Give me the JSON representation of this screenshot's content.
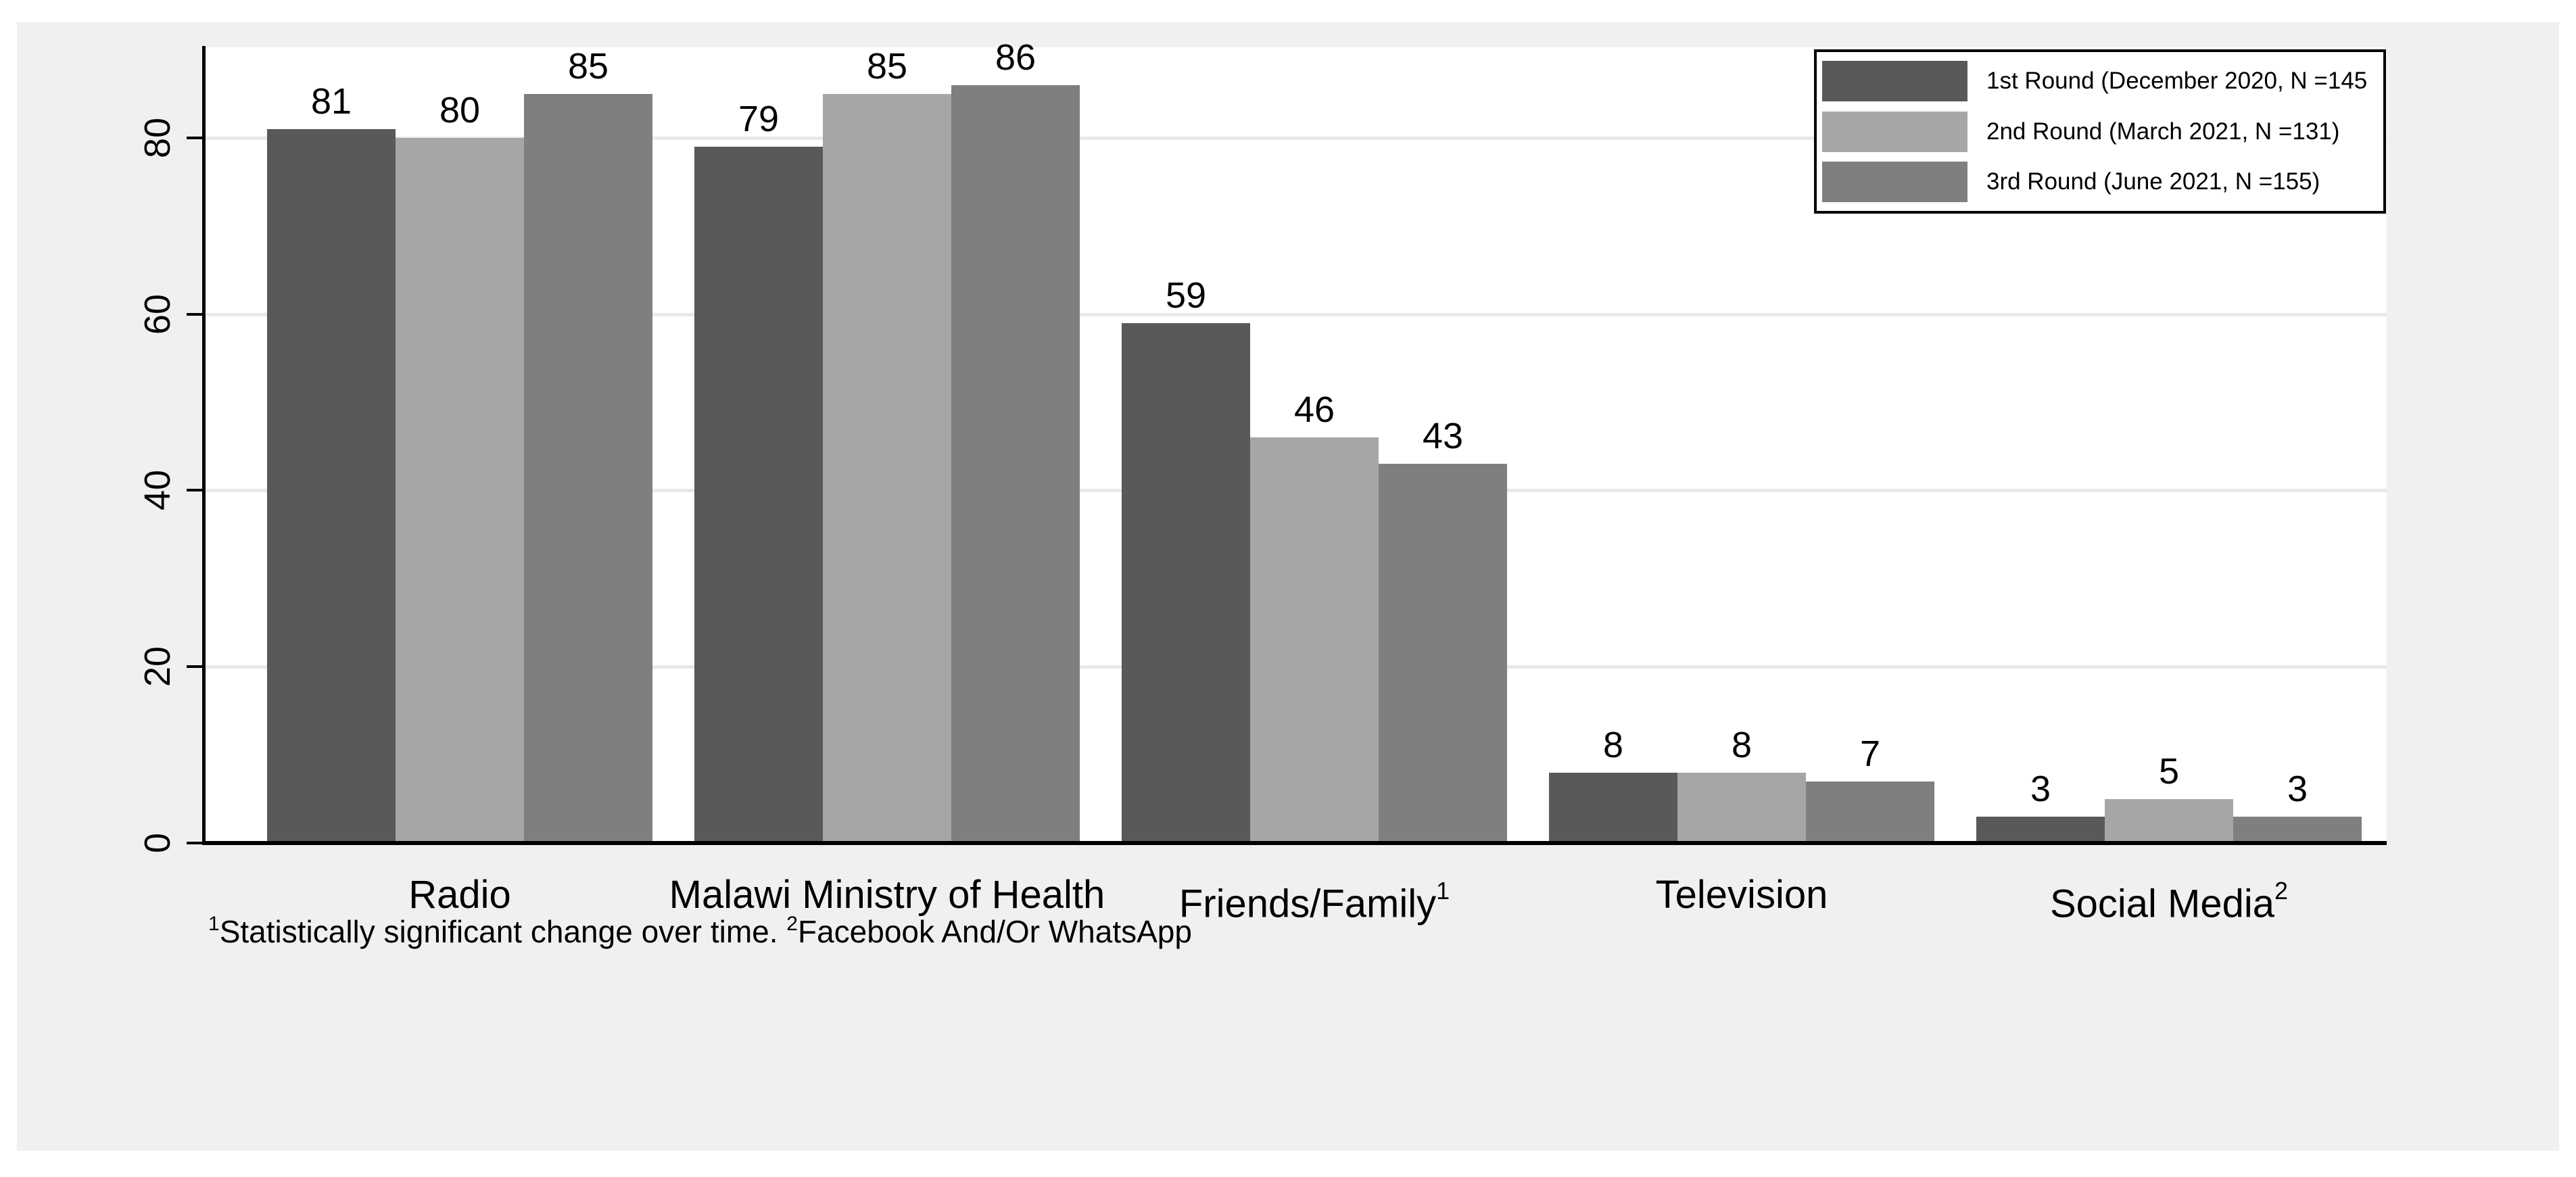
{
  "figure": {
    "background_color": "#f0f0f0",
    "plot_background": "#ffffff",
    "gridline_color": "#e8e8e8",
    "axis_color": "#000000",
    "text_color": "#000000"
  },
  "chart_data": {
    "type": "bar",
    "categories": [
      {
        "label": "Radio",
        "sup": ""
      },
      {
        "label": "Malawi Ministry of Health",
        "sup": ""
      },
      {
        "label": "Friends/Family",
        "sup": "1"
      },
      {
        "label": "Television",
        "sup": ""
      },
      {
        "label": "Social Media",
        "sup": "2"
      }
    ],
    "series": [
      {
        "name": "1st Round (December 2020, N =145",
        "color": "#595959",
        "values": [
          81,
          79,
          59,
          8,
          3
        ]
      },
      {
        "name": "2nd Round (March 2021, N =131)",
        "color": "#a6a6a6",
        "values": [
          80,
          85,
          46,
          8,
          5
        ]
      },
      {
        "name": "3rd Round (June 2021, N =155)",
        "color": "#7f7f7f",
        "values": [
          85,
          86,
          43,
          7,
          3
        ]
      }
    ],
    "y_axis": {
      "ticks": [
        0,
        20,
        40,
        60,
        80
      ],
      "range": [
        0,
        90
      ]
    },
    "bar_value_labels": true,
    "grid": true,
    "legend_position": "top-right",
    "title": "",
    "xlabel": "",
    "ylabel": ""
  },
  "footnote": {
    "sup1": "1",
    "text1": "Statistically significant change over time. ",
    "sup2": "2",
    "text2": "Facebook And/Or WhatsApp"
  }
}
